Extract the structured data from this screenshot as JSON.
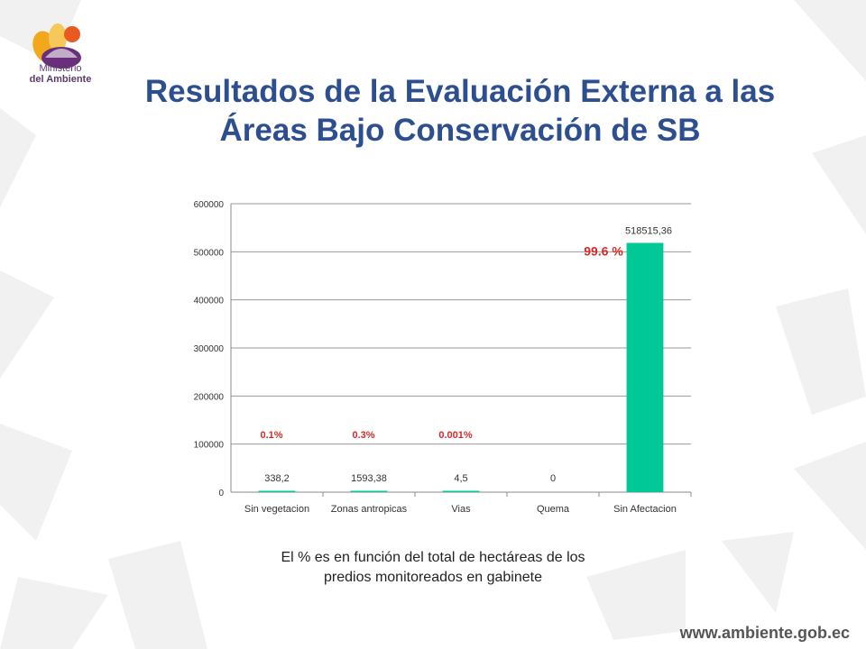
{
  "slide": {
    "title_line1": "Resultados de la Evaluación Externa a las",
    "title_line2": "Áreas Bajo Conservación de SB",
    "footnote_line1": "El % es en función del total de hectáreas de los",
    "footnote_line2": "predios monitoreados en gabinete",
    "url": "www.ambiente.gob.ec",
    "logo_line1": "Ministerio",
    "logo_line2": "del Ambiente",
    "colors": {
      "title": "#2e4f8f",
      "bar": "#00c896",
      "percent": "#d42a2a"
    }
  },
  "chart_data": {
    "type": "bar",
    "categories": [
      "Sin vegetacion",
      "Zonas antropicas",
      "Vias",
      "Quema",
      "Sin Afectacion"
    ],
    "values": [
      338.2,
      1593.38,
      4.5,
      0,
      518515.36
    ],
    "value_labels": [
      "338,2",
      "1593,38",
      "4,5",
      "0",
      "518515,36"
    ],
    "percent_labels": [
      "0.1%",
      "0.3%",
      "0.001%",
      "",
      "99.6 %"
    ],
    "yticks": [
      0,
      100000,
      200000,
      300000,
      400000,
      500000,
      600000
    ],
    "ytick_labels": [
      "0",
      "100000",
      "200000",
      "300000",
      "400000",
      "500000",
      "600000"
    ],
    "ylim": [
      0,
      600000
    ],
    "grid": true,
    "legend": "none"
  }
}
